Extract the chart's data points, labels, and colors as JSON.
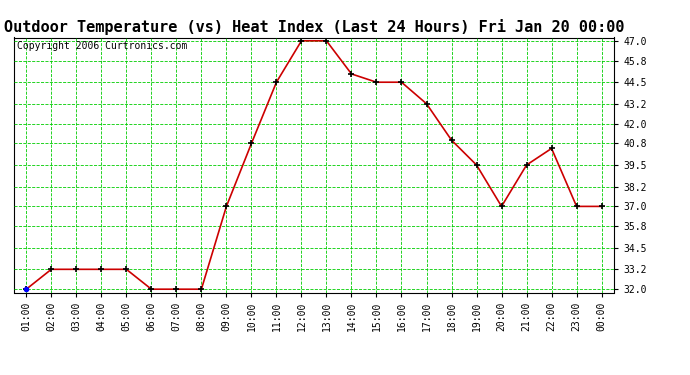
{
  "title": "Outdoor Temperature (vs) Heat Index (Last 24 Hours) Fri Jan 20 00:00",
  "copyright": "Copyright 2006 Curtronics.com",
  "x_labels": [
    "01:00",
    "02:00",
    "03:00",
    "04:00",
    "05:00",
    "06:00",
    "07:00",
    "08:00",
    "09:00",
    "10:00",
    "11:00",
    "12:00",
    "13:00",
    "14:00",
    "15:00",
    "16:00",
    "17:00",
    "18:00",
    "19:00",
    "20:00",
    "21:00",
    "22:00",
    "23:00",
    "00:00"
  ],
  "y_values": [
    32.0,
    33.2,
    33.2,
    33.2,
    33.2,
    32.0,
    32.0,
    32.0,
    37.0,
    40.8,
    44.5,
    47.0,
    47.0,
    45.0,
    44.5,
    44.5,
    43.2,
    41.0,
    39.5,
    37.0,
    39.5,
    40.5,
    37.0,
    37.0
  ],
  "line_color": "#cc0000",
  "marker_color": "#000000",
  "bg_color": "#ffffff",
  "plot_bg_color": "#ffffff",
  "grid_color": "#00cc00",
  "title_color": "#000000",
  "y_min": 32.0,
  "y_max": 47.0,
  "y_tick_values": [
    32.0,
    33.2,
    34.5,
    35.8,
    37.0,
    38.2,
    39.5,
    40.8,
    42.0,
    43.2,
    44.5,
    45.8,
    47.0
  ],
  "title_fontsize": 11,
  "copyright_fontsize": 7,
  "tick_fontsize": 7
}
